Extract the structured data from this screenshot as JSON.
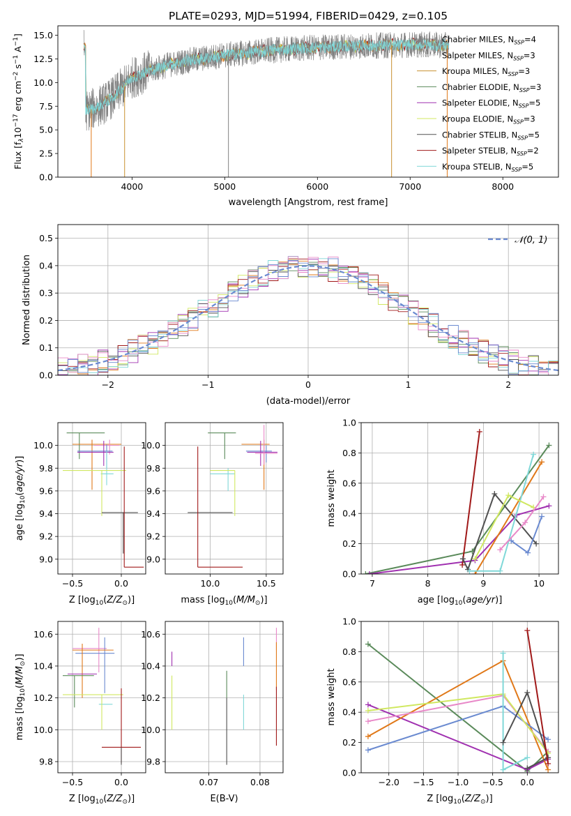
{
  "figure": {
    "title": "PLATE=0293, MJD=51994, FIBERID=0429, z=0.105"
  },
  "colors": {
    "chabrier_miles": "#6a8ad0",
    "salpeter_miles": "#e0e0e0",
    "kroupa_miles": "#e07818",
    "chabrier_elodie": "#5a8a5a",
    "salpeter_elodie": "#a030b0",
    "kroupa_elodie": "#d0e860",
    "chabrier_stelib": "#505050",
    "salpeter_stelib": "#a01818",
    "kroupa_stelib": "#80d8d8",
    "pink": "#e888c8",
    "gaussian": "#6a8ad0",
    "grid": "#b0b0b0"
  },
  "chart_data": [
    {
      "id": "spectrum",
      "type": "line",
      "title": "PLATE=0293, MJD=51994, FIBERID=0429, z=0.105",
      "xlabel": "wavelength [Angstrom, rest frame]",
      "ylabel": "Flux [f_λ 10^-17 erg cm^-2 s^-1 A^-1]",
      "xlim": [
        3200,
        8600
      ],
      "ylim": [
        0,
        16
      ],
      "xticks": [
        4000,
        5000,
        6000,
        7000,
        8000
      ],
      "yticks": [
        0.0,
        2.5,
        5.0,
        7.5,
        10.0,
        12.5,
        15.0
      ],
      "grid": false,
      "legend_position": "top-right",
      "series": [
        {
          "name": "Chabrier MILES, N_SSP=4",
          "color": "#808080"
        },
        {
          "name": "Salpeter MILES, N_SSP=3",
          "color": "#e0e0e0"
        },
        {
          "name": "Kroupa MILES, N_SSP=3",
          "color": "#c89030"
        },
        {
          "name": "Chabrier ELODIE, N_SSP=3",
          "color": "#5a8a5a"
        },
        {
          "name": "Salpeter ELODIE, N_SSP=5",
          "color": "#a030b0"
        },
        {
          "name": "Kroupa ELODIE, N_SSP=3",
          "color": "#d0e860"
        },
        {
          "name": "Chabrier STELIB, N_SSP=5",
          "color": "#505050"
        },
        {
          "name": "Salpeter STELIB, N_SSP=2",
          "color": "#a01818"
        },
        {
          "name": "Kroupa STELIB, N_SSP=5",
          "color": "#80d8d8"
        }
      ],
      "continuum": {
        "x": [
          3500,
          3600,
          3700,
          3800,
          3900,
          4000,
          4200,
          4400,
          4600,
          4800,
          5000,
          5200,
          5500,
          5800,
          6000,
          6300,
          6600,
          7000,
          7200,
          7500,
          7800,
          8000,
          8300,
          8600
        ],
        "y": [
          7.0,
          7.3,
          7.8,
          8.5,
          9.5,
          10.5,
          11.3,
          11.9,
          12.3,
          12.6,
          12.9,
          13.1,
          13.4,
          13.6,
          13.7,
          13.8,
          13.9,
          14.0,
          14.0,
          13.9,
          13.8,
          13.7,
          13.6,
          13.5
        ]
      },
      "observed_noise_amplitude": 1.4,
      "vertical_spikes_x": [
        3560,
        3920,
        5040,
        6800,
        7400
      ]
    },
    {
      "id": "residuals",
      "type": "histogram",
      "xlabel": "(data-model)/error",
      "ylabel": "Normed distribution",
      "xlim": [
        -2.5,
        2.5
      ],
      "ylim": [
        0,
        0.55
      ],
      "xticks": [
        -2,
        -1,
        0,
        1,
        2
      ],
      "yticks": [
        0.0,
        0.1,
        0.2,
        0.3,
        0.4,
        0.5
      ],
      "grid": true,
      "legend": {
        "label": "N(0,1)",
        "position": "top-right"
      },
      "bin_width": 0.1,
      "reference_curve": "standard normal"
    },
    {
      "id": "age_vs_Z",
      "type": "scatter",
      "xlabel": "Z [log10(Z/Z☉)]",
      "ylabel": "age [log10(age/yr)]",
      "xlim": [
        -0.65,
        0.25
      ],
      "ylim": [
        8.87,
        10.2
      ],
      "xticks": [
        -0.5,
        0.0
      ],
      "yticks": [
        9.0,
        9.2,
        9.4,
        9.6,
        9.8,
        10.0
      ],
      "points": [
        {
          "x": -0.43,
          "y": 10.11,
          "xerr": [
            0.13,
            0.26
          ],
          "yerr": [
            0.23,
            0.0
          ],
          "color": "#5a8a5a"
        },
        {
          "x": -0.3,
          "y": 10.01,
          "xerr": [
            0.2,
            0.3
          ],
          "yerr": [
            0.4,
            0.04
          ],
          "color": "#e07818"
        },
        {
          "x": -0.12,
          "y": 10.0,
          "xerr": [
            0.16,
            0.1
          ],
          "yerr": [
            0.08,
            0.05
          ],
          "color": "#e888c8"
        },
        {
          "x": -0.15,
          "y": 9.95,
          "xerr": [
            0.3,
            0.06
          ],
          "yerr": [
            0.15,
            0.06
          ],
          "color": "#6a8ad0"
        },
        {
          "x": -0.18,
          "y": 9.94,
          "xerr": [
            0.27,
            0.1
          ],
          "yerr": [
            0.12,
            0.1
          ],
          "color": "#a030b0"
        },
        {
          "x": -0.15,
          "y": 9.75,
          "xerr": [
            0.06,
            0.07
          ],
          "yerr": [
            0.1,
            0.2
          ],
          "color": "#80d8d8"
        },
        {
          "x": -0.2,
          "y": 9.78,
          "xerr": [
            0.4,
            0.25
          ],
          "yerr": [
            0.4,
            0.0
          ],
          "color": "#d0e860"
        },
        {
          "x": 0.02,
          "y": 9.41,
          "xerr": [
            0.22,
            0.15
          ],
          "yerr": [
            0.36,
            0.0
          ],
          "color": "#505050"
        },
        {
          "x": 0.03,
          "y": 8.93,
          "xerr": [
            0.0,
            0.2
          ],
          "yerr": [
            0.0,
            1.06
          ],
          "color": "#a01818"
        }
      ]
    },
    {
      "id": "age_vs_mass",
      "type": "scatter",
      "xlabel": "mass [log10(M/M☉)]",
      "ylabel": "",
      "xlim": [
        9.6,
        10.65
      ],
      "ylim": [
        8.87,
        10.2
      ],
      "xticks": [
        10.0,
        10.5
      ],
      "yticks": [
        9.0,
        9.2,
        9.4,
        9.6,
        9.8,
        10.0
      ],
      "points": [
        {
          "x": 10.13,
          "y": 10.11,
          "xerr": [
            0.15,
            0.1
          ],
          "yerr": [
            0.23,
            0.0
          ],
          "color": "#5a8a5a"
        },
        {
          "x": 10.48,
          "y": 10.01,
          "xerr": [
            0.2,
            0.05
          ],
          "yerr": [
            0.4,
            0.04
          ],
          "color": "#e07818"
        },
        {
          "x": 10.5,
          "y": 9.95,
          "xerr": [
            0.18,
            0.05
          ],
          "yerr": [
            0.1,
            0.05
          ],
          "color": "#6a8ad0"
        },
        {
          "x": 10.45,
          "y": 9.94,
          "xerr": [
            0.12,
            0.15
          ],
          "yerr": [
            0.12,
            0.1
          ],
          "color": "#a030b0"
        },
        {
          "x": 10.48,
          "y": 9.93,
          "xerr": [
            0.08,
            0.12
          ],
          "yerr": [
            0.1,
            0.25
          ],
          "color": "#e888c8"
        },
        {
          "x": 10.16,
          "y": 9.75,
          "xerr": [
            0.16,
            0.06
          ],
          "yerr": [
            0.15,
            0.05
          ],
          "color": "#80d8d8"
        },
        {
          "x": 10.22,
          "y": 9.78,
          "xerr": [
            0.22,
            0.0
          ],
          "yerr": [
            0.4,
            0.0
          ],
          "color": "#d0e860"
        },
        {
          "x": 10.02,
          "y": 9.41,
          "xerr": [
            0.22,
            0.18
          ],
          "yerr": [
            0.0,
            0.0
          ],
          "color": "#505050"
        },
        {
          "x": 9.89,
          "y": 8.93,
          "xerr": [
            0.0,
            0.4
          ],
          "yerr": [
            0.0,
            1.06
          ],
          "color": "#a01818"
        }
      ]
    },
    {
      "id": "weight_vs_age",
      "type": "line",
      "xlabel": "age [log10(age/yr)]",
      "ylabel": "mass weight",
      "xlim": [
        6.8,
        10.35
      ],
      "ylim": [
        0,
        1
      ],
      "xticks": [
        7,
        8,
        9,
        10
      ],
      "yticks": [
        0.0,
        0.2,
        0.4,
        0.6,
        0.8,
        1.0
      ],
      "series": [
        {
          "color": "#5a8a5a",
          "x": [
            6.88,
            8.8,
            10.18
          ],
          "y": [
            0.0,
            0.15,
            0.85
          ]
        },
        {
          "color": "#a030b0",
          "x": [
            6.95,
            8.85,
            9.6,
            10.18
          ],
          "y": [
            0.0,
            0.09,
            0.39,
            0.45
          ]
        },
        {
          "color": "#a01818",
          "x": [
            8.62,
            8.93
          ],
          "y": [
            0.06,
            0.94
          ]
        },
        {
          "color": "#505050",
          "x": [
            8.63,
            8.72,
            9.2,
            9.95
          ],
          "y": [
            0.1,
            0.03,
            0.53,
            0.2
          ]
        },
        {
          "color": "#e07818",
          "x": [
            8.85,
            10.05
          ],
          "y": [
            0.0,
            0.74
          ]
        },
        {
          "color": "#80d8d8",
          "x": [
            8.75,
            9.3,
            9.9
          ],
          "y": [
            0.02,
            0.02,
            0.79
          ]
        },
        {
          "color": "#d0e860",
          "x": [
            8.85,
            9.45,
            9.9
          ],
          "y": [
            0.1,
            0.52,
            0.44
          ]
        },
        {
          "color": "#6a8ad0",
          "x": [
            9.5,
            9.8,
            10.05
          ],
          "y": [
            0.22,
            0.14,
            0.38
          ]
        },
        {
          "color": "#e888c8",
          "x": [
            9.3,
            9.75,
            10.08
          ],
          "y": [
            0.16,
            0.34,
            0.51
          ]
        }
      ]
    },
    {
      "id": "mass_vs_Z",
      "type": "scatter",
      "xlabel": "Z [log10(Z/Z☉)]",
      "ylabel": "mass [log10(M/M☉)]",
      "xlim": [
        -0.65,
        0.25
      ],
      "ylim": [
        9.73,
        10.68
      ],
      "xticks": [
        -0.5,
        0.0
      ],
      "yticks": [
        9.8,
        10.0,
        10.2,
        10.4,
        10.6
      ],
      "points": [
        {
          "x": -0.23,
          "y": 10.51,
          "xerr": [
            0.27,
            0.08
          ],
          "yerr": [
            0.15,
            0.13
          ],
          "color": "#e888c8"
        },
        {
          "x": -0.17,
          "y": 10.48,
          "xerr": [
            0.3,
            0.1
          ],
          "yerr": [
            0.25,
            0.1
          ],
          "color": "#6a8ad0"
        },
        {
          "x": -0.4,
          "y": 10.5,
          "xerr": [
            0.1,
            0.32
          ],
          "yerr": [
            0.3,
            0.04
          ],
          "color": "#e07818"
        },
        {
          "x": -0.35,
          "y": 10.35,
          "xerr": [
            0.2,
            0.1
          ],
          "yerr": [
            0.0,
            0.0
          ],
          "color": "#a030b0"
        },
        {
          "x": -0.48,
          "y": 10.34,
          "xerr": [
            0.12,
            0.2
          ],
          "yerr": [
            0.2,
            0.0
          ],
          "color": "#5a8a5a"
        },
        {
          "x": -0.17,
          "y": 10.16,
          "xerr": [
            0.06,
            0.08
          ],
          "yerr": [
            0.0,
            0.0
          ],
          "color": "#80d8d8"
        },
        {
          "x": -0.2,
          "y": 10.22,
          "xerr": [
            0.4,
            0.22
          ],
          "yerr": [
            0.22,
            0.0
          ],
          "color": "#d0e860"
        },
        {
          "x": 0.0,
          "y": 9.89,
          "xerr": [
            0.2,
            0.2
          ],
          "yerr": [
            0.1,
            0.37
          ],
          "color": "#a01818"
        },
        {
          "x": 0.0,
          "y": 9.89,
          "xerr": [
            0.0,
            0.0
          ],
          "yerr": [
            0.11,
            0.0
          ],
          "color": "#505050"
        }
      ]
    },
    {
      "id": "mass_vs_ebv",
      "type": "scatter",
      "xlabel": "E(B-V)",
      "ylabel": "",
      "xlim": [
        0.0615,
        0.0845
      ],
      "ylim": [
        9.73,
        10.68
      ],
      "xticks": [
        0.07,
        0.08
      ],
      "yticks": [
        9.8,
        10.0,
        10.2,
        10.4,
        10.6
      ],
      "points": [
        {
          "x": 0.0628,
          "y": 10.4,
          "xerr": [
            0,
            0
          ],
          "yerr": [
            0.0,
            0.09
          ],
          "color": "#a030b0"
        },
        {
          "x": 0.0628,
          "y": 10.2,
          "xerr": [
            0,
            0
          ],
          "yerr": [
            0.2,
            0.14
          ],
          "color": "#d0e860"
        },
        {
          "x": 0.0735,
          "y": 10.2,
          "xerr": [
            0,
            0
          ],
          "yerr": [
            0.0,
            0.17
          ],
          "color": "#5a8a5a"
        },
        {
          "x": 0.0735,
          "y": 10.0,
          "xerr": [
            0,
            0
          ],
          "yerr": [
            0.22,
            0.2
          ],
          "color": "#505050"
        },
        {
          "x": 0.0768,
          "y": 10.4,
          "xerr": [
            0,
            0
          ],
          "yerr": [
            0.0,
            0.18
          ],
          "color": "#6a8ad0"
        },
        {
          "x": 0.0768,
          "y": 10.1,
          "xerr": [
            0,
            0
          ],
          "yerr": [
            0.1,
            0.12
          ],
          "color": "#80d8d8"
        },
        {
          "x": 0.0832,
          "y": 10.5,
          "xerr": [
            0,
            0
          ],
          "yerr": [
            0.0,
            0.14
          ],
          "color": "#e888c8"
        },
        {
          "x": 0.0832,
          "y": 10.4,
          "xerr": [
            0,
            0
          ],
          "yerr": [
            0.15,
            0.15
          ],
          "color": "#e07818"
        },
        {
          "x": 0.0832,
          "y": 10.1,
          "xerr": [
            0,
            0
          ],
          "yerr": [
            0.2,
            0.17
          ],
          "color": "#a01818"
        }
      ]
    },
    {
      "id": "weight_vs_Z",
      "type": "line",
      "xlabel": "Z [log10(Z/Z☉)]",
      "ylabel": "mass weight",
      "xlim": [
        -2.4,
        0.45
      ],
      "ylim": [
        0,
        1
      ],
      "xticks": [
        -2.0,
        -1.5,
        -1.0,
        -0.5,
        0.0
      ],
      "yticks": [
        0.0,
        0.2,
        0.4,
        0.6,
        0.8,
        1.0
      ],
      "series": [
        {
          "color": "#5a8a5a",
          "x": [
            -2.3,
            0.0,
            0.3
          ],
          "y": [
            0.85,
            0.01,
            0.14
          ]
        },
        {
          "color": "#a030b0",
          "x": [
            -2.3,
            0.0,
            0.3
          ],
          "y": [
            0.45,
            0.02,
            0.09
          ]
        },
        {
          "color": "#e07818",
          "x": [
            -2.3,
            -0.35,
            0.3
          ],
          "y": [
            0.24,
            0.74,
            0.02
          ]
        },
        {
          "color": "#6a8ad0",
          "x": [
            -2.3,
            -0.35,
            0.3
          ],
          "y": [
            0.15,
            0.44,
            0.22
          ]
        },
        {
          "color": "#e888c8",
          "x": [
            -2.3,
            -0.35,
            0.3
          ],
          "y": [
            0.34,
            0.51,
            0.14
          ]
        },
        {
          "color": "#d0e860",
          "x": [
            -2.3,
            -0.35,
            0.3
          ],
          "y": [
            0.41,
            0.52,
            0.13
          ]
        },
        {
          "color": "#80d8d8",
          "x": [
            -0.35,
            -0.35,
            0.0
          ],
          "y": [
            0.79,
            0.02,
            0.1
          ]
        },
        {
          "color": "#505050",
          "x": [
            -0.35,
            0.0,
            0.3,
            0.0
          ],
          "y": [
            0.2,
            0.53,
            0.1,
            0.03
          ]
        },
        {
          "color": "#a01818",
          "x": [
            0.0,
            0.3
          ],
          "y": [
            0.94,
            0.06
          ]
        }
      ]
    }
  ],
  "labels": {
    "spectrum_ylabel": "Flux [f",
    "age_ylabel": "age  [log",
    "mass_ylabel": "mass [log"
  }
}
